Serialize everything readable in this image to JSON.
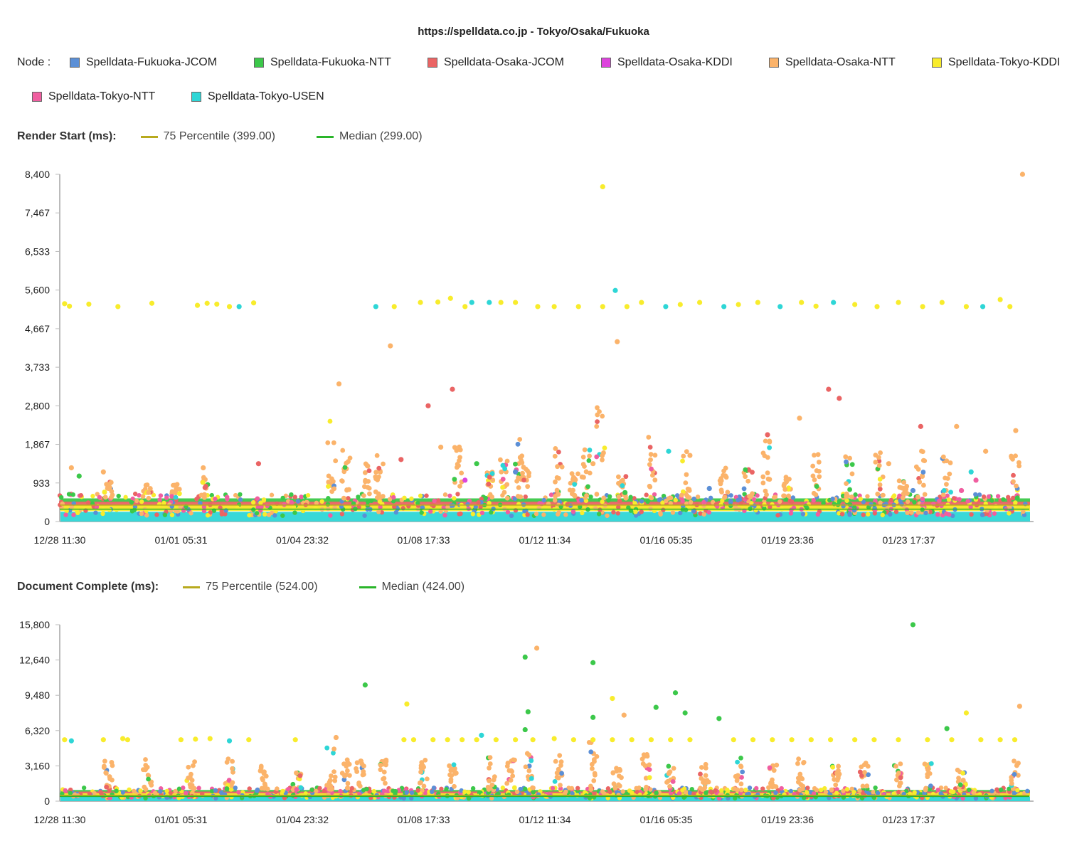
{
  "title": "https://spelldata.co.jp - Tokyo/Osaka/Fukuoka",
  "legend": {
    "label": "Node :",
    "nodes": [
      {
        "name": "Spelldata-Fukuoka-JCOM",
        "color": "#5b8fd6"
      },
      {
        "name": "Spelldata-Fukuoka-NTT",
        "color": "#3cc84a"
      },
      {
        "name": "Spelldata-Osaka-JCOM",
        "color": "#ea6464"
      },
      {
        "name": "Spelldata-Osaka-KDDI",
        "color": "#dd44dd"
      },
      {
        "name": "Spelldata-Osaka-NTT",
        "color": "#fbb36a"
      },
      {
        "name": "Spelldata-Tokyo-KDDI",
        "color": "#f8ec2c"
      },
      {
        "name": "Spelldata-Tokyo-NTT",
        "color": "#f05ea0"
      },
      {
        "name": "Spelldata-Tokyo-USEN",
        "color": "#2ed6d6"
      }
    ]
  },
  "stat_colors": {
    "p75": "#b8aa1e",
    "median": "#2ab52a"
  },
  "chart_data": [
    {
      "type": "scatter",
      "title": "Render Start (ms):",
      "p75_label": "75 Percentile (399.00)",
      "median_label": "Median (299.00)",
      "p75": 399,
      "median": 299,
      "ylim": [
        0,
        8400
      ],
      "yticks": [
        "0",
        "933",
        "1,867",
        "2,800",
        "3,733",
        "4,667",
        "5,600",
        "6,533",
        "7,467",
        "8,400"
      ],
      "xticks": [
        "12/28 11:30",
        "01/01 05:31",
        "01/04 23:32",
        "01/08 17:33",
        "01/12 11:34",
        "01/16 05:35",
        "01/19 23:36",
        "01/23 17:37"
      ],
      "band_top": 560,
      "outliers": [
        {
          "x": 0.5,
          "y": 5270,
          "s": 5
        },
        {
          "x": 1.0,
          "y": 5210,
          "s": 5
        },
        {
          "x": 3.0,
          "y": 5260,
          "s": 5
        },
        {
          "x": 6.0,
          "y": 5200,
          "s": 5
        },
        {
          "x": 9.5,
          "y": 5280,
          "s": 5
        },
        {
          "x": 14.2,
          "y": 5230,
          "s": 5
        },
        {
          "x": 15.2,
          "y": 5280,
          "s": 5
        },
        {
          "x": 16.2,
          "y": 5260,
          "s": 5
        },
        {
          "x": 17.5,
          "y": 5200,
          "s": 5
        },
        {
          "x": 20.0,
          "y": 5290,
          "s": 5
        },
        {
          "x": 18.5,
          "y": 5200,
          "s": 7
        },
        {
          "x": 32.6,
          "y": 5200,
          "s": 7
        },
        {
          "x": 34.5,
          "y": 5200,
          "s": 5
        },
        {
          "x": 37.2,
          "y": 5300,
          "s": 5
        },
        {
          "x": 39.0,
          "y": 5310,
          "s": 5
        },
        {
          "x": 40.3,
          "y": 5400,
          "s": 5
        },
        {
          "x": 41.8,
          "y": 5200,
          "s": 5
        },
        {
          "x": 42.5,
          "y": 5300,
          "s": 7
        },
        {
          "x": 44.3,
          "y": 5300,
          "s": 7
        },
        {
          "x": 45.5,
          "y": 5300,
          "s": 5
        },
        {
          "x": 47.0,
          "y": 5300,
          "s": 5
        },
        {
          "x": 49.3,
          "y": 5200,
          "s": 5
        },
        {
          "x": 51.0,
          "y": 5200,
          "s": 5
        },
        {
          "x": 53.5,
          "y": 5200,
          "s": 5
        },
        {
          "x": 56.0,
          "y": 5200,
          "s": 5
        },
        {
          "x": 57.3,
          "y": 5590,
          "s": 7
        },
        {
          "x": 58.5,
          "y": 5200,
          "s": 5
        },
        {
          "x": 60.0,
          "y": 5300,
          "s": 5
        },
        {
          "x": 62.5,
          "y": 5200,
          "s": 7
        },
        {
          "x": 64.0,
          "y": 5250,
          "s": 5
        },
        {
          "x": 66.0,
          "y": 5300,
          "s": 5
        },
        {
          "x": 68.5,
          "y": 5200,
          "s": 7
        },
        {
          "x": 70.0,
          "y": 5250,
          "s": 5
        },
        {
          "x": 72.0,
          "y": 5300,
          "s": 5
        },
        {
          "x": 74.3,
          "y": 5200,
          "s": 7
        },
        {
          "x": 76.5,
          "y": 5300,
          "s": 5
        },
        {
          "x": 78.0,
          "y": 5210,
          "s": 5
        },
        {
          "x": 79.8,
          "y": 5300,
          "s": 7
        },
        {
          "x": 82.0,
          "y": 5250,
          "s": 5
        },
        {
          "x": 84.3,
          "y": 5200,
          "s": 5
        },
        {
          "x": 86.5,
          "y": 5300,
          "s": 5
        },
        {
          "x": 89.0,
          "y": 5200,
          "s": 5
        },
        {
          "x": 91.0,
          "y": 5300,
          "s": 5
        },
        {
          "x": 93.5,
          "y": 5200,
          "s": 5
        },
        {
          "x": 95.2,
          "y": 5200,
          "s": 7
        },
        {
          "x": 97.0,
          "y": 5370,
          "s": 5
        },
        {
          "x": 98.0,
          "y": 5200,
          "s": 5
        },
        {
          "x": 56.0,
          "y": 8100,
          "s": 5
        },
        {
          "x": 99.3,
          "y": 8400,
          "s": 4
        },
        {
          "x": 57.5,
          "y": 4350,
          "s": 4
        },
        {
          "x": 34.1,
          "y": 4250,
          "s": 4
        },
        {
          "x": 28.8,
          "y": 3330,
          "s": 4
        },
        {
          "x": 40.5,
          "y": 3200,
          "s": 2
        },
        {
          "x": 38.0,
          "y": 2800,
          "s": 2
        },
        {
          "x": 79.3,
          "y": 3200,
          "s": 2
        },
        {
          "x": 80.4,
          "y": 2980,
          "s": 2
        },
        {
          "x": 73.0,
          "y": 2100,
          "s": 2
        },
        {
          "x": 88.8,
          "y": 2300,
          "s": 2
        },
        {
          "x": 35.2,
          "y": 1500,
          "s": 2
        },
        {
          "x": 20.5,
          "y": 1400,
          "s": 2
        },
        {
          "x": 39.3,
          "y": 1800,
          "s": 4
        },
        {
          "x": 55.0,
          "y": 1400,
          "s": 4
        },
        {
          "x": 62.8,
          "y": 1700,
          "s": 7
        },
        {
          "x": 47.0,
          "y": 1200,
          "s": 0
        },
        {
          "x": 47.5,
          "y": 1550,
          "s": 4
        },
        {
          "x": 65.0,
          "y": 1600,
          "s": 4
        },
        {
          "x": 85.5,
          "y": 1400,
          "s": 4
        },
        {
          "x": 76.3,
          "y": 2500,
          "s": 4
        },
        {
          "x": 92.5,
          "y": 2300,
          "s": 4
        },
        {
          "x": 98.6,
          "y": 2200,
          "s": 4
        },
        {
          "x": 95.5,
          "y": 1700,
          "s": 4
        },
        {
          "x": 14.8,
          "y": 1300,
          "s": 4
        },
        {
          "x": 1.2,
          "y": 1300,
          "s": 4
        },
        {
          "x": 2.0,
          "y": 1100,
          "s": 1
        },
        {
          "x": 4.5,
          "y": 1200,
          "s": 4
        },
        {
          "x": 41.8,
          "y": 1000,
          "s": 3
        },
        {
          "x": 43.0,
          "y": 1400,
          "s": 1
        },
        {
          "x": 94.0,
          "y": 1200,
          "s": 7
        },
        {
          "x": 94.5,
          "y": 1000,
          "s": 6
        },
        {
          "x": 93.0,
          "y": 750,
          "s": 6
        },
        {
          "x": 58.3,
          "y": 700,
          "s": 1
        },
        {
          "x": 67.0,
          "y": 800,
          "s": 0
        },
        {
          "x": 88.0,
          "y": 750,
          "s": 0
        }
      ],
      "clusters": [
        {
          "x": 28.0,
          "top": 2500
        },
        {
          "x": 29.5,
          "top": 1900
        },
        {
          "x": 31.5,
          "top": 2000
        },
        {
          "x": 33.0,
          "top": 1600
        },
        {
          "x": 41.0,
          "top": 1900
        },
        {
          "x": 44.5,
          "top": 1200
        },
        {
          "x": 45.8,
          "top": 1500
        },
        {
          "x": 47.2,
          "top": 2000
        },
        {
          "x": 48.0,
          "top": 1700
        },
        {
          "x": 51.5,
          "top": 1900
        },
        {
          "x": 53.0,
          "top": 1200
        },
        {
          "x": 54.3,
          "top": 1800
        },
        {
          "x": 55.8,
          "top": 2800
        },
        {
          "x": 58.0,
          "top": 1100
        },
        {
          "x": 61.0,
          "top": 2100
        },
        {
          "x": 64.5,
          "top": 1900
        },
        {
          "x": 68.5,
          "top": 1300
        },
        {
          "x": 71.0,
          "top": 1400
        },
        {
          "x": 72.8,
          "top": 2000
        },
        {
          "x": 75.0,
          "top": 1100
        },
        {
          "x": 78.0,
          "top": 1700
        },
        {
          "x": 81.5,
          "top": 1700
        },
        {
          "x": 84.5,
          "top": 1700
        },
        {
          "x": 87.0,
          "top": 1000
        },
        {
          "x": 88.8,
          "top": 1900
        },
        {
          "x": 91.5,
          "top": 1800
        },
        {
          "x": 98.5,
          "top": 1600
        },
        {
          "x": 15.0,
          "top": 1100
        },
        {
          "x": 5.0,
          "top": 1000
        },
        {
          "x": 9.0,
          "top": 900
        },
        {
          "x": 12.0,
          "top": 900
        }
      ]
    },
    {
      "type": "scatter",
      "title": "Document Complete (ms):",
      "p75_label": "75 Percentile (524.00)",
      "median_label": "Median (424.00)",
      "p75": 524,
      "median": 424,
      "ylim": [
        0,
        15800
      ],
      "yticks": [
        "0",
        "3,160",
        "6,320",
        "9,480",
        "12,640",
        "15,800"
      ],
      "xticks": [
        "12/28 11:30",
        "01/01 05:31",
        "01/04 23:32",
        "01/08 17:33",
        "01/12 11:34",
        "01/16 05:35",
        "01/19 23:36",
        "01/23 17:37"
      ],
      "band_top": 1000,
      "outliers": [
        {
          "x": 0.5,
          "y": 5500,
          "s": 5
        },
        {
          "x": 1.2,
          "y": 5400,
          "s": 7
        },
        {
          "x": 4.5,
          "y": 5500,
          "s": 5
        },
        {
          "x": 6.5,
          "y": 5600,
          "s": 5
        },
        {
          "x": 7.0,
          "y": 5500,
          "s": 5
        },
        {
          "x": 12.5,
          "y": 5500,
          "s": 5
        },
        {
          "x": 14.0,
          "y": 5550,
          "s": 5
        },
        {
          "x": 15.5,
          "y": 5600,
          "s": 5
        },
        {
          "x": 17.5,
          "y": 5400,
          "s": 7
        },
        {
          "x": 19.5,
          "y": 5500,
          "s": 5
        },
        {
          "x": 24.3,
          "y": 5500,
          "s": 5
        },
        {
          "x": 28.5,
          "y": 5700,
          "s": 4
        },
        {
          "x": 35.5,
          "y": 5500,
          "s": 5
        },
        {
          "x": 36.5,
          "y": 5500,
          "s": 5
        },
        {
          "x": 38.5,
          "y": 5500,
          "s": 5
        },
        {
          "x": 40.0,
          "y": 5500,
          "s": 5
        },
        {
          "x": 41.5,
          "y": 5500,
          "s": 5
        },
        {
          "x": 43.0,
          "y": 5500,
          "s": 5
        },
        {
          "x": 45.0,
          "y": 5500,
          "s": 5
        },
        {
          "x": 47.0,
          "y": 5500,
          "s": 5
        },
        {
          "x": 48.8,
          "y": 5500,
          "s": 5
        },
        {
          "x": 51.0,
          "y": 5600,
          "s": 5
        },
        {
          "x": 53.0,
          "y": 5500,
          "s": 5
        },
        {
          "x": 55.0,
          "y": 5500,
          "s": 5
        },
        {
          "x": 57.0,
          "y": 5500,
          "s": 5
        },
        {
          "x": 59.0,
          "y": 5500,
          "s": 5
        },
        {
          "x": 61.0,
          "y": 5500,
          "s": 5
        },
        {
          "x": 63.0,
          "y": 5500,
          "s": 5
        },
        {
          "x": 65.0,
          "y": 5500,
          "s": 5
        },
        {
          "x": 69.5,
          "y": 5500,
          "s": 5
        },
        {
          "x": 71.5,
          "y": 5500,
          "s": 5
        },
        {
          "x": 73.5,
          "y": 5500,
          "s": 5
        },
        {
          "x": 75.5,
          "y": 5500,
          "s": 5
        },
        {
          "x": 77.5,
          "y": 5500,
          "s": 5
        },
        {
          "x": 79.5,
          "y": 5500,
          "s": 5
        },
        {
          "x": 82.0,
          "y": 5500,
          "s": 5
        },
        {
          "x": 84.0,
          "y": 5500,
          "s": 5
        },
        {
          "x": 86.5,
          "y": 5500,
          "s": 5
        },
        {
          "x": 89.5,
          "y": 5500,
          "s": 5
        },
        {
          "x": 92.0,
          "y": 5500,
          "s": 5
        },
        {
          "x": 95.0,
          "y": 5500,
          "s": 5
        },
        {
          "x": 97.0,
          "y": 5500,
          "s": 5
        },
        {
          "x": 98.5,
          "y": 5500,
          "s": 5
        },
        {
          "x": 43.5,
          "y": 5900,
          "s": 7
        },
        {
          "x": 31.5,
          "y": 10400,
          "s": 1
        },
        {
          "x": 35.8,
          "y": 8700,
          "s": 5
        },
        {
          "x": 48.0,
          "y": 12900,
          "s": 1
        },
        {
          "x": 49.2,
          "y": 13700,
          "s": 4
        },
        {
          "x": 55.0,
          "y": 12400,
          "s": 1
        },
        {
          "x": 57.0,
          "y": 9200,
          "s": 5
        },
        {
          "x": 48.3,
          "y": 8000,
          "s": 1
        },
        {
          "x": 55.0,
          "y": 7500,
          "s": 1
        },
        {
          "x": 58.2,
          "y": 7700,
          "s": 4
        },
        {
          "x": 61.5,
          "y": 8400,
          "s": 1
        },
        {
          "x": 63.5,
          "y": 9700,
          "s": 1
        },
        {
          "x": 64.5,
          "y": 7900,
          "s": 1
        },
        {
          "x": 68.0,
          "y": 7400,
          "s": 1
        },
        {
          "x": 88.0,
          "y": 15800,
          "s": 1
        },
        {
          "x": 93.5,
          "y": 7900,
          "s": 5
        },
        {
          "x": 99.0,
          "y": 8500,
          "s": 4
        },
        {
          "x": 91.5,
          "y": 6500,
          "s": 1
        },
        {
          "x": 48.0,
          "y": 6400,
          "s": 1
        }
      ],
      "clusters": [
        {
          "x": 28.0,
          "top": 5500
        },
        {
          "x": 29.5,
          "top": 4000
        },
        {
          "x": 31.0,
          "top": 3600
        },
        {
          "x": 33.5,
          "top": 3800
        },
        {
          "x": 37.5,
          "top": 3700
        },
        {
          "x": 40.5,
          "top": 3500
        },
        {
          "x": 44.5,
          "top": 4200
        },
        {
          "x": 46.5,
          "top": 3800
        },
        {
          "x": 48.5,
          "top": 4300
        },
        {
          "x": 51.5,
          "top": 4100
        },
        {
          "x": 55.0,
          "top": 5400
        },
        {
          "x": 57.5,
          "top": 3400
        },
        {
          "x": 60.5,
          "top": 4200
        },
        {
          "x": 63.0,
          "top": 3400
        },
        {
          "x": 66.5,
          "top": 3400
        },
        {
          "x": 70.0,
          "top": 3900
        },
        {
          "x": 73.5,
          "top": 4100
        },
        {
          "x": 76.5,
          "top": 4000
        },
        {
          "x": 80.0,
          "top": 3400
        },
        {
          "x": 83.0,
          "top": 3500
        },
        {
          "x": 86.5,
          "top": 3700
        },
        {
          "x": 89.5,
          "top": 4200
        },
        {
          "x": 93.0,
          "top": 3000
        },
        {
          "x": 98.5,
          "top": 3800
        },
        {
          "x": 5.0,
          "top": 3600
        },
        {
          "x": 9.0,
          "top": 4000
        },
        {
          "x": 13.5,
          "top": 3600
        },
        {
          "x": 17.5,
          "top": 3800
        },
        {
          "x": 21.0,
          "top": 3200
        },
        {
          "x": 24.5,
          "top": 2600
        }
      ]
    }
  ]
}
